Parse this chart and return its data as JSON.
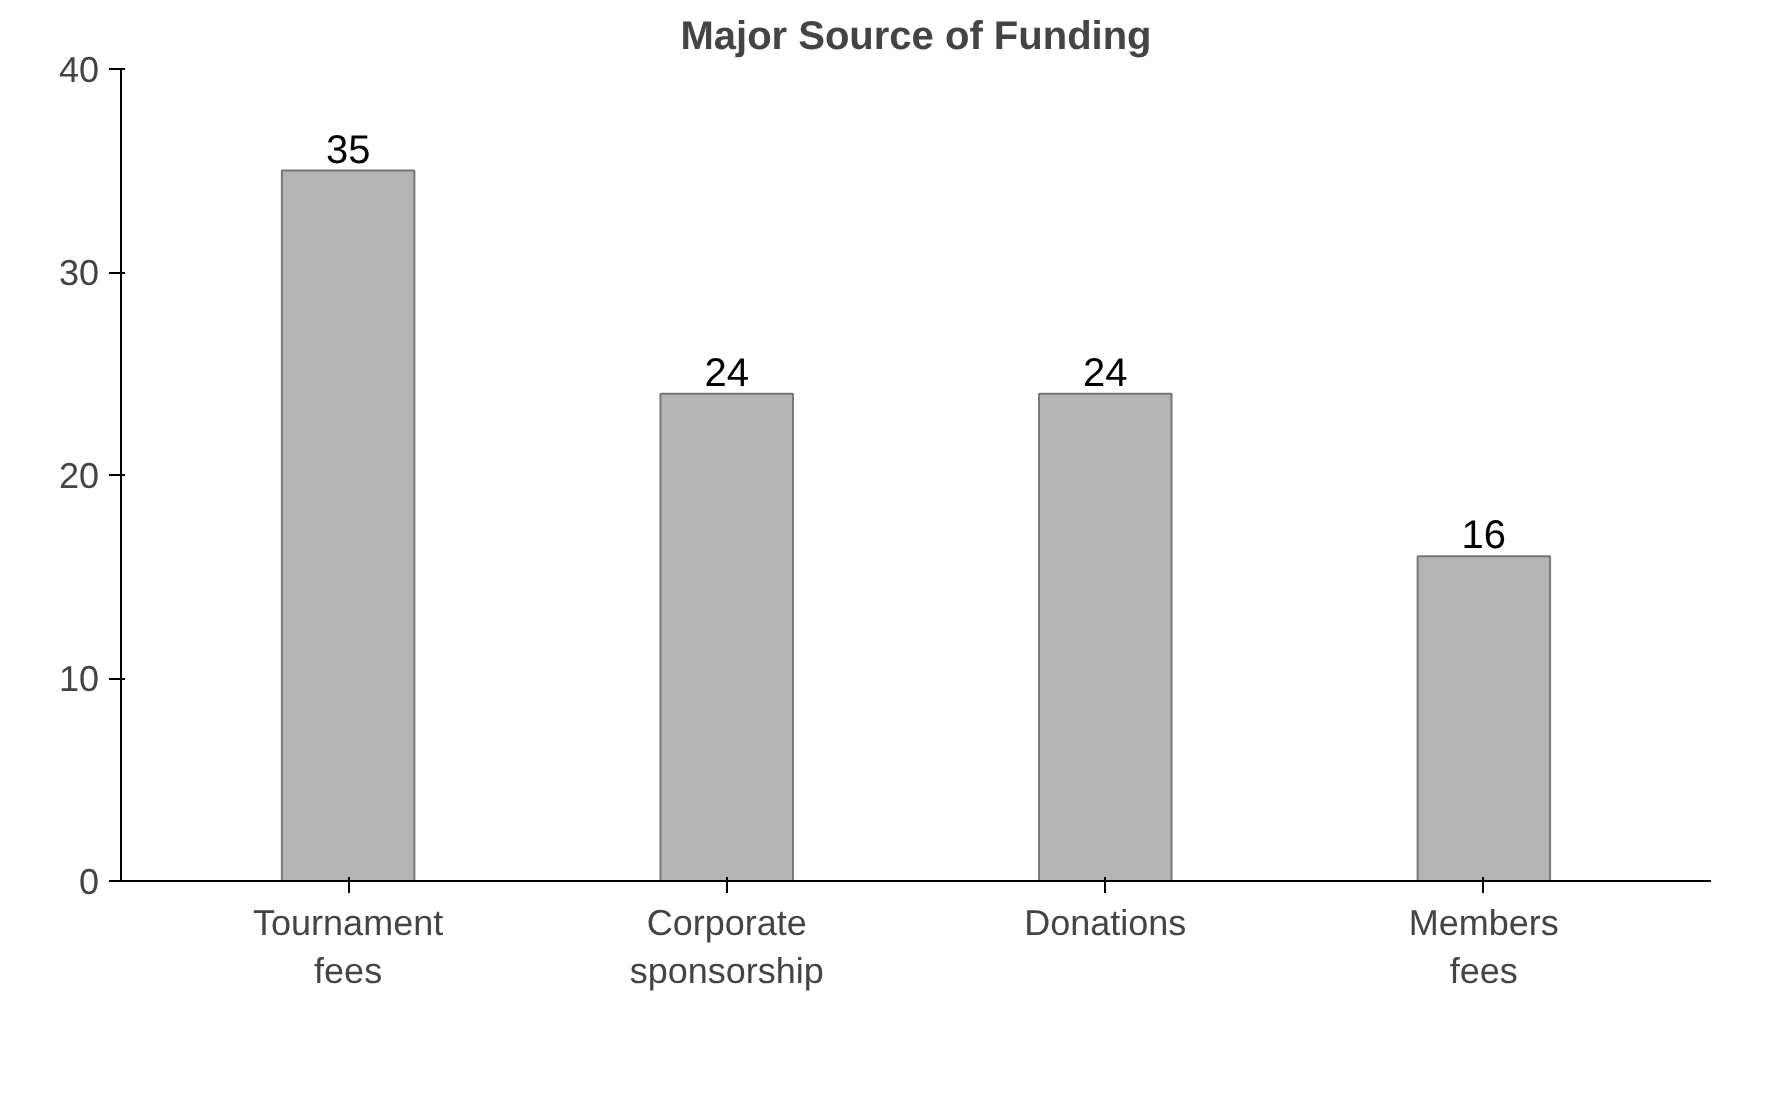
{
  "chart_data": {
    "type": "bar",
    "title": "Major Source of Funding",
    "categories": [
      "Tournament fees",
      "Corporate sponsorship",
      "Donations",
      "Members fees"
    ],
    "values": [
      35,
      24,
      24,
      16
    ],
    "color": "#b4b4b4",
    "ylim": [
      0,
      40
    ],
    "yticks": [
      0,
      10,
      20,
      30,
      40
    ],
    "grid": false,
    "data_labels": true
  }
}
